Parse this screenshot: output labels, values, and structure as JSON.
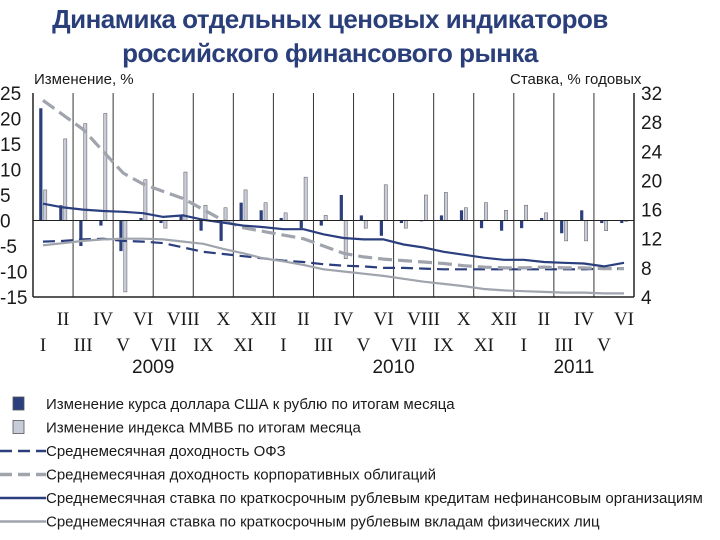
{
  "titles": {
    "line1": "Динамика отдельных ценовых индикаторов",
    "line2": "российского финансового рынка"
  },
  "chart_data": {
    "type": "bar+line",
    "title": "Динамика отдельных ценовых индикаторов российского финансового рынка",
    "y_left": {
      "label": "Изменение, %",
      "range": [
        -15,
        25
      ],
      "ticks": [
        25,
        20,
        15,
        10,
        5,
        0,
        -5,
        -10,
        -15
      ]
    },
    "y_right": {
      "label": "Ставка, % годовых",
      "range": [
        4,
        32
      ],
      "ticks": [
        32,
        28,
        24,
        20,
        16,
        12,
        8,
        4
      ]
    },
    "month_labels_upper": [
      "II",
      "IV",
      "VI",
      "VIII",
      "X",
      "XII",
      "II",
      "IV",
      "VI",
      "VIII",
      "X",
      "XII",
      "II",
      "IV",
      "VI"
    ],
    "month_labels_lower": [
      "I",
      "III",
      "V",
      "VII",
      "IX",
      "XI",
      "I",
      "III",
      "V",
      "VII",
      "IX",
      "XI",
      "I",
      "III",
      "V"
    ],
    "years": [
      "2009",
      "2010",
      "2011"
    ],
    "months": [
      "I-09",
      "II-09",
      "III-09",
      "IV-09",
      "V-09",
      "VI-09",
      "VII-09",
      "VIII-09",
      "IX-09",
      "X-09",
      "XI-09",
      "XII-09",
      "I-10",
      "II-10",
      "III-10",
      "IV-10",
      "V-10",
      "VI-10",
      "VII-10",
      "VIII-10",
      "IX-10",
      "X-10",
      "XI-10",
      "XII-10",
      "I-11",
      "II-11",
      "III-11",
      "IV-11",
      "V-11",
      "VI-11"
    ],
    "bar_series": [
      {
        "name": "Изменение курса доллара США к рублю по итогам месяца",
        "color": "#2b3f7e",
        "values": [
          22,
          3,
          -5,
          -1,
          -6,
          0.5,
          -0.5,
          1,
          -2,
          -4,
          3.5,
          2,
          0.5,
          -1.5,
          -1,
          5,
          1,
          -3,
          -0.5,
          0,
          1,
          2,
          -1.5,
          -2,
          -1.5,
          0.5,
          -2.5,
          2,
          -0.5,
          -0.5
        ]
      },
      {
        "name": "Изменение индекса ММВБ по итогам месяца",
        "color": "#c8ccd9",
        "values": [
          6,
          16,
          19,
          21,
          -14,
          8,
          -1.5,
          9.5,
          3,
          2.5,
          6,
          3.5,
          1.5,
          8.5,
          1,
          -7.5,
          -1.5,
          7,
          -1.5,
          5,
          5.5,
          2.5,
          3.5,
          2,
          3,
          1.5,
          -4,
          -4,
          -2,
          0
        ]
      }
    ],
    "line_series": [
      {
        "name": "Среднемесячная доходность ОФЗ",
        "color": "#2b3f7e",
        "style": "dashed",
        "values": [
          11.6,
          11.7,
          11.9,
          12.0,
          11.7,
          11.6,
          11.4,
          10.8,
          10.2,
          9.9,
          9.6,
          9.3,
          9.0,
          8.8,
          8.5,
          8.3,
          8.2,
          8.0,
          8.0,
          7.9,
          7.8,
          7.8,
          7.8,
          7.8,
          7.8,
          7.8,
          7.8,
          7.8,
          7.9,
          7.9
        ]
      },
      {
        "name": "Среднемесячная доходность корпоративных облигаций",
        "color": "#a0a4ad",
        "style": "dashed",
        "values": [
          31,
          29,
          27,
          24,
          21,
          19.5,
          18.5,
          17.5,
          16,
          14.5,
          13.5,
          13,
          12.5,
          12,
          11,
          10,
          9.5,
          9.2,
          9.0,
          8.8,
          8.6,
          8.3,
          8.1,
          8.0,
          8.0,
          8.1,
          8.0,
          8.0,
          7.9,
          7.9
        ]
      },
      {
        "name": "Среднемесячная ставка по краткосрочным рублевым кредитам нефинансовым организациям",
        "color": "#2b3f7e",
        "style": "solid",
        "values": [
          16.8,
          16.3,
          16.0,
          15.8,
          15.7,
          15.5,
          15.0,
          15.2,
          14.6,
          14.2,
          13.8,
          13.6,
          13.3,
          13.3,
          12.6,
          12.1,
          11.9,
          11.9,
          11.2,
          10.8,
          10.2,
          9.8,
          9.4,
          9.1,
          9.1,
          8.8,
          8.7,
          8.6,
          8.2,
          8.7
        ]
      },
      {
        "name": "Среднемесячная ставка по краткосрочным рублевым вкладам физических лиц",
        "color": "#a0a4ad",
        "style": "solid",
        "values": [
          11.1,
          11.4,
          11.7,
          11.9,
          12.0,
          12.0,
          11.9,
          11.6,
          11.3,
          10.6,
          10.0,
          9.3,
          8.9,
          8.4,
          7.8,
          7.5,
          7.2,
          6.9,
          6.5,
          6.1,
          5.8,
          5.5,
          5.1,
          4.9,
          4.8,
          4.7,
          4.6,
          4.6,
          4.5,
          4.5
        ]
      }
    ],
    "grid": "vertical",
    "legend_position": "bottom"
  },
  "legend": [
    {
      "label": "Изменение курса доллара США к рублю по итогам месяца",
      "kind": "box",
      "color": "#2b3f7e"
    },
    {
      "label": "Изменение индекса ММВБ по итогам месяца",
      "kind": "box",
      "color": "#c8ccd9"
    },
    {
      "label": "Среднемесячная доходность ОФЗ",
      "kind": "dashed",
      "color": "#2b3f7e"
    },
    {
      "label": "Среднемесячная доходность корпоративных облигаций",
      "kind": "dashed",
      "color": "#a0a4ad"
    },
    {
      "label": "Среднемесячная ставка по краткосрочным рублевым кредитам нефинансовым организациям",
      "kind": "solid",
      "color": "#2b3f7e"
    },
    {
      "label": "Среднемесячная ставка по краткосрочным рублевым вкладам физических лиц",
      "kind": "solid",
      "color": "#a0a4ad"
    }
  ]
}
